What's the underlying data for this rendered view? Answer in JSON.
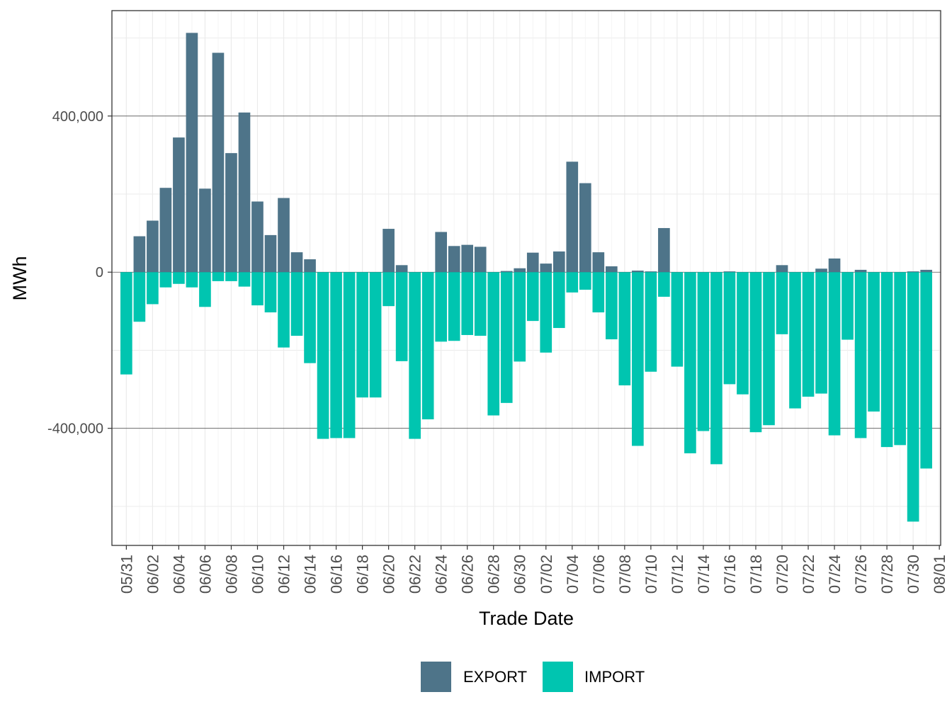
{
  "chart_data": {
    "type": "bar",
    "stacked": true,
    "xlabel": "Trade Date",
    "ylabel": "MWh",
    "ylim": [
      -700000,
      670000
    ],
    "y_ticks": [
      -400000,
      0,
      400000
    ],
    "y_tick_labels": [
      "-400,000",
      "0",
      "400,000"
    ],
    "x_tick_labels": [
      "05/31",
      "06/02",
      "06/04",
      "06/06",
      "06/08",
      "06/10",
      "06/12",
      "06/14",
      "06/16",
      "06/18",
      "06/20",
      "06/22",
      "06/24",
      "06/26",
      "06/28",
      "06/30",
      "07/02",
      "07/04",
      "07/06",
      "07/08",
      "07/10",
      "07/12",
      "07/14",
      "07/16",
      "07/18",
      "07/20",
      "07/22",
      "07/24",
      "07/26",
      "07/28",
      "07/30",
      "08/01"
    ],
    "grid": true,
    "legend": {
      "position": "bottom",
      "entries": [
        "EXPORT",
        "IMPORT"
      ]
    },
    "colors": {
      "EXPORT": "#4e7489",
      "IMPORT": "#00c5b0"
    },
    "x": [
      "2023-05-31",
      "2023-06-01",
      "2023-06-02",
      "2023-06-03",
      "2023-06-04",
      "2023-06-05",
      "2023-06-06",
      "2023-06-07",
      "2023-06-08",
      "2023-06-09",
      "2023-06-10",
      "2023-06-11",
      "2023-06-12",
      "2023-06-13",
      "2023-06-14",
      "2023-06-15",
      "2023-06-16",
      "2023-06-17",
      "2023-06-18",
      "2023-06-19",
      "2023-06-20",
      "2023-06-21",
      "2023-06-22",
      "2023-06-23",
      "2023-06-24",
      "2023-06-25",
      "2023-06-26",
      "2023-06-27",
      "2023-06-28",
      "2023-06-29",
      "2023-06-30",
      "2023-07-01",
      "2023-07-02",
      "2023-07-03",
      "2023-07-04",
      "2023-07-05",
      "2023-07-06",
      "2023-07-07",
      "2023-07-08",
      "2023-07-09",
      "2023-07-10",
      "2023-07-11",
      "2023-07-12",
      "2023-07-13",
      "2023-07-14",
      "2023-07-15",
      "2023-07-16",
      "2023-07-17",
      "2023-07-18",
      "2023-07-19",
      "2023-07-20",
      "2023-07-21",
      "2023-07-22",
      "2023-07-23",
      "2023-07-24",
      "2023-07-25",
      "2023-07-26",
      "2023-07-27",
      "2023-07-28",
      "2023-07-29",
      "2023-07-30",
      "2023-07-31"
    ],
    "series": [
      {
        "name": "EXPORT",
        "values": [
          0,
          92000,
          132000,
          216000,
          345000,
          613000,
          214000,
          562000,
          305000,
          409000,
          181000,
          95000,
          190000,
          51000,
          33000,
          0,
          0,
          0,
          0,
          0,
          111000,
          18000,
          0,
          0,
          103000,
          67000,
          70000,
          65000,
          0,
          3000,
          10000,
          50000,
          22000,
          53000,
          283000,
          228000,
          51000,
          15000,
          0,
          4000,
          2000,
          113000,
          0,
          0,
          0,
          0,
          2000,
          0,
          0,
          0,
          18000,
          0,
          0,
          9000,
          35000,
          0,
          6000,
          0,
          0,
          0,
          2000,
          6000
        ]
      },
      {
        "name": "IMPORT",
        "values": [
          -262000,
          -127000,
          -82000,
          -39000,
          -30000,
          -39000,
          -89000,
          -23000,
          -23000,
          -37000,
          -85000,
          -103000,
          -193000,
          -163000,
          -233000,
          -427000,
          -425000,
          -425000,
          -321000,
          -321000,
          -87000,
          -228000,
          -427000,
          -377000,
          -178000,
          -176000,
          -161000,
          -163000,
          -367000,
          -335000,
          -229000,
          -125000,
          -206000,
          -143000,
          -52000,
          -45000,
          -103000,
          -172000,
          -290000,
          -445000,
          -255000,
          -63000,
          -242000,
          -464000,
          -407000,
          -492000,
          -287000,
          -313000,
          -410000,
          -392000,
          -159000,
          -349000,
          -319000,
          -311000,
          -418000,
          -173000,
          -425000,
          -357000,
          -448000,
          -443000,
          -639000,
          -503000
        ]
      }
    ]
  }
}
